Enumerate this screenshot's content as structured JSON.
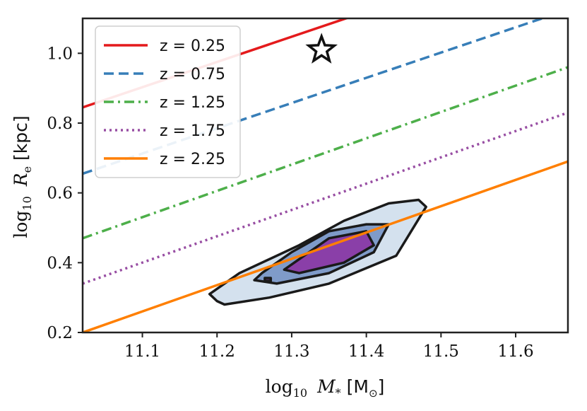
{
  "chart_data": {
    "type": "line",
    "xlabel": "log10 M* [M⊙]",
    "ylabel": "log10 Re [kpc]",
    "xlim": [
      11.02,
      11.67
    ],
    "ylim": [
      0.2,
      1.1
    ],
    "xticks": [
      "11.1",
      "11.2",
      "11.3",
      "11.4",
      "11.5",
      "11.6"
    ],
    "yticks": [
      "0.2",
      "0.4",
      "0.6",
      "0.8",
      "1.0"
    ],
    "grid": false,
    "legend_position": "top-left",
    "series": [
      {
        "name": "z = 0.25",
        "color": "#e41a1c",
        "dash": "solid",
        "x": [
          11.02,
          11.67
        ],
        "y": [
          0.845,
          1.315
        ]
      },
      {
        "name": "z = 0.75",
        "color": "#377eb8",
        "dash": "dashed",
        "x": [
          11.02,
          11.67
        ],
        "y": [
          0.655,
          1.125
        ]
      },
      {
        "name": "z = 1.25",
        "color": "#4daf4a",
        "dash": "dashdot",
        "x": [
          11.02,
          11.67
        ],
        "y": [
          0.47,
          0.96
        ]
      },
      {
        "name": "z = 1.75",
        "color": "#984ea3",
        "dash": "dotted",
        "x": [
          11.02,
          11.67
        ],
        "y": [
          0.34,
          0.83
        ]
      },
      {
        "name": "z = 2.25",
        "color": "#ff7f00",
        "dash": "solid",
        "x": [
          11.02,
          11.67
        ],
        "y": [
          0.2,
          0.69
        ]
      }
    ],
    "star_marker": {
      "x": 11.34,
      "y": 1.01
    },
    "contours": [
      {
        "level": "outer",
        "fill": "#d4e1ee",
        "points": [
          [
            11.2,
            0.29
          ],
          [
            11.21,
            0.28
          ],
          [
            11.27,
            0.3
          ],
          [
            11.35,
            0.34
          ],
          [
            11.44,
            0.42
          ],
          [
            11.48,
            0.56
          ],
          [
            11.47,
            0.58
          ],
          [
            11.43,
            0.57
          ],
          [
            11.37,
            0.52
          ],
          [
            11.31,
            0.45
          ],
          [
            11.23,
            0.37
          ],
          [
            11.19,
            0.31
          ]
        ]
      },
      {
        "level": "middle",
        "fill": "#7f9bc9",
        "points": [
          [
            11.25,
            0.35
          ],
          [
            11.28,
            0.34
          ],
          [
            11.35,
            0.37
          ],
          [
            11.41,
            0.43
          ],
          [
            11.43,
            0.51
          ],
          [
            11.4,
            0.51
          ],
          [
            11.35,
            0.49
          ],
          [
            11.3,
            0.43
          ],
          [
            11.26,
            0.37
          ]
        ]
      },
      {
        "level": "inner",
        "fill": "#8a3fa8",
        "points": [
          [
            11.29,
            0.38
          ],
          [
            11.31,
            0.37
          ],
          [
            11.37,
            0.4
          ],
          [
            11.41,
            0.45
          ],
          [
            11.4,
            0.49
          ],
          [
            11.35,
            0.47
          ],
          [
            11.31,
            0.41
          ]
        ]
      },
      {
        "level": "inner-small",
        "fill": "#8a3fa8",
        "points": [
          [
            11.264,
            0.348
          ],
          [
            11.272,
            0.348
          ],
          [
            11.272,
            0.356
          ],
          [
            11.264,
            0.356
          ]
        ]
      }
    ]
  }
}
